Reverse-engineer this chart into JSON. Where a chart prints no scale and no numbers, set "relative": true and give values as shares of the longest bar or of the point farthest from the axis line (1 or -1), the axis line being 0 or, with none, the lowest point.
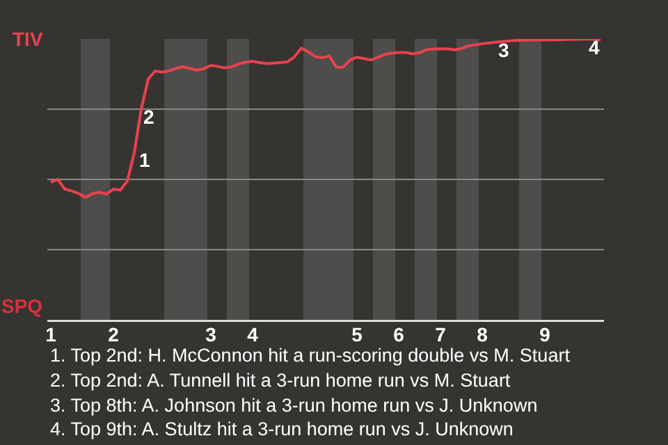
{
  "chart_data": {
    "type": "line",
    "relative": true,
    "categories": [
      "1",
      null,
      null,
      null,
      null,
      null,
      null,
      null,
      null,
      "2",
      null,
      null,
      null,
      null,
      null,
      null,
      null,
      null,
      null,
      null,
      null,
      null,
      null,
      "3",
      null,
      null,
      null,
      null,
      null,
      "4",
      null,
      null,
      null,
      null,
      null,
      null,
      null,
      null,
      null,
      null,
      null,
      null,
      null,
      null,
      "5",
      null,
      null,
      null,
      null,
      null,
      "6",
      null,
      null,
      null,
      null,
      null,
      "7",
      null,
      null,
      null,
      null,
      null,
      "8",
      null,
      null,
      null,
      null,
      null,
      null,
      null,
      null,
      "9",
      null,
      null,
      null,
      null,
      null,
      null,
      null,
      null
    ],
    "series": [
      {
        "color": "#e8424f",
        "values": [
          0.49,
          0.5,
          0.466,
          0.459,
          0.45,
          0.436,
          0.45,
          0.454,
          0.448,
          0.465,
          0.462,
          0.494,
          0.595,
          0.75,
          0.857,
          0.886,
          0.882,
          0.886,
          0.895,
          0.901,
          0.895,
          0.889,
          0.894,
          0.906,
          0.902,
          0.897,
          0.901,
          0.911,
          0.917,
          0.921,
          0.916,
          0.912,
          0.914,
          0.916,
          0.918,
          0.936,
          0.967,
          0.954,
          0.937,
          0.933,
          0.94,
          0.9,
          0.899,
          0.925,
          0.935,
          0.93,
          0.925,
          0.934,
          0.945,
          0.949,
          0.952,
          0.952,
          0.947,
          0.951,
          0.962,
          0.964,
          0.965,
          0.965,
          0.961,
          0.966,
          0.975,
          0.979,
          0.983,
          0.986,
          0.989,
          0.991,
          0.993,
          0.995,
          0.995,
          0.996,
          0.996,
          0.996,
          0.997,
          0.997,
          0.998,
          0.998,
          0.999,
          1.0,
          0.999,
          0.996
        ]
      }
    ],
    "grid": "y",
    "marker": "none",
    "line_style": "solid",
    "annotations": [
      "TIV",
      "SPQ",
      "1",
      "2",
      "3",
      "4",
      "1. Top 2nd: H. McConnon hit a run-scoring double vs M. Stuart",
      "2. Top 2nd: A. Tunnell hit a 3-run home run vs M. Stuart",
      "3. Top 8th: A. Johnson hit a 3-run home run vs J. Unknown",
      "4. Top 9th: A. Stultz hit a 3-run home run vs J. Unknown"
    ]
  }
}
